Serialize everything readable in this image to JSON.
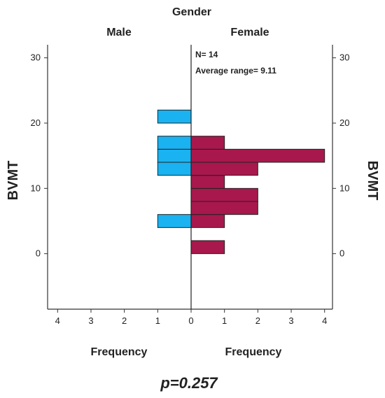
{
  "chart_data": {
    "type": "bar",
    "title": "Gender",
    "group_labels": [
      "Male",
      "Female"
    ],
    "ylabel": "BVMT",
    "xlabel": "Frequency",
    "ylim": [
      -8.5,
      32
    ],
    "y_ticks": [
      0,
      10,
      20,
      30
    ],
    "x_ticks_male": [
      4,
      3,
      2,
      1,
      0
    ],
    "x_ticks_female": [
      0,
      1,
      2,
      3,
      4
    ],
    "xlim": [
      0,
      4.3
    ],
    "bin_width": 2,
    "series": [
      {
        "name": "Male",
        "color": "#1ab2f0",
        "bins": [
          {
            "y": 5,
            "count": 1
          },
          {
            "y": 13,
            "count": 1
          },
          {
            "y": 15,
            "count": 1
          },
          {
            "y": 17,
            "count": 1
          },
          {
            "y": 21,
            "count": 1
          }
        ]
      },
      {
        "name": "Female",
        "color": "#a8184c",
        "bins": [
          {
            "y": 1,
            "count": 1
          },
          {
            "y": 5,
            "count": 1
          },
          {
            "y": 7,
            "count": 2
          },
          {
            "y": 9,
            "count": 2
          },
          {
            "y": 11,
            "count": 1
          },
          {
            "y": 13,
            "count": 2
          },
          {
            "y": 15,
            "count": 4
          },
          {
            "y": 17,
            "count": 1
          }
        ]
      }
    ],
    "annotations": {
      "n": "N= 14",
      "average_range": "Average range= 9.11"
    },
    "p_value": "p=0.257"
  }
}
